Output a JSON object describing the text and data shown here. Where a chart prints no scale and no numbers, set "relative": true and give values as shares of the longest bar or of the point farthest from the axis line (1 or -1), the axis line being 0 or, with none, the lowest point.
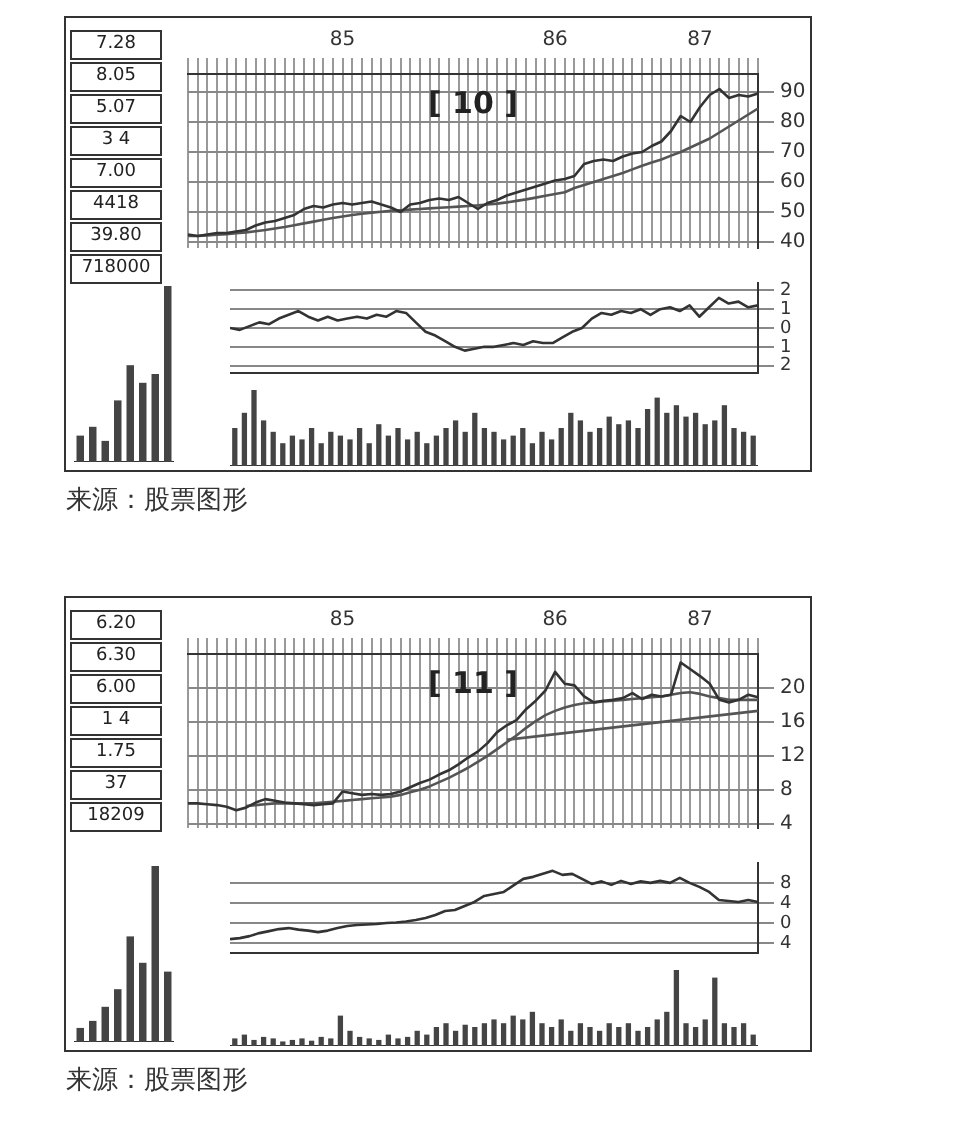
{
  "chart_data": [
    {
      "type": "line",
      "title": "[ 10 ]",
      "categories": [
        null,
        null,
        null,
        null,
        null,
        null,
        null,
        null,
        null,
        null,
        null,
        null,
        null,
        null,
        null,
        null,
        "85",
        null,
        null,
        null,
        null,
        null,
        null,
        null,
        null,
        null,
        null,
        null,
        null,
        null,
        null,
        null,
        null,
        null,
        null,
        null,
        null,
        null,
        "86",
        null,
        null,
        null,
        null,
        null,
        null,
        null,
        null,
        null,
        null,
        null,
        null,
        null,
        null,
        "87",
        null,
        null,
        null,
        null,
        null,
        null
      ],
      "series": [
        {
          "color": "#333333",
          "values": [
            42.5,
            42,
            42.5,
            43,
            43,
            43.5,
            44,
            45.5,
            46.5,
            47,
            48,
            49,
            51,
            52,
            51.5,
            52.5,
            53,
            52.5,
            53,
            53.5,
            52.5,
            51.5,
            50,
            52.5,
            53,
            54,
            54.5,
            54,
            55,
            53,
            51,
            53,
            54,
            55.5,
            56.5,
            57.5,
            58.5,
            59.5,
            60.5,
            61,
            62,
            66,
            67,
            67.5,
            67,
            68.5,
            69.5,
            70,
            72,
            73.5,
            77,
            82,
            80,
            85,
            89,
            91,
            88,
            89,
            88.5,
            89.5
          ]
        },
        {
          "color": "#555555",
          "values": [
            42,
            42,
            42.2,
            42.4,
            42.6,
            42.9,
            43.2,
            43.6,
            44,
            44.5,
            45,
            45.6,
            46.2,
            46.8,
            47.4,
            48,
            48.5,
            49,
            49.4,
            49.8,
            50.1,
            50.4,
            50.6,
            50.8,
            51,
            51.2,
            51.4,
            51.6,
            51.8,
            52,
            52.2,
            52.5,
            52.8,
            53.2,
            53.7,
            54.2,
            54.8,
            55.4,
            56,
            56.6,
            58,
            59,
            60,
            61,
            62,
            63,
            64.2,
            65.4,
            66.5,
            67.5,
            68.8,
            70,
            71.5,
            73,
            74.5,
            76.5,
            78.5,
            80.5,
            82.5,
            84.5
          ]
        }
      ],
      "ylim": [
        38,
        96
      ],
      "yticks": [
        40,
        50,
        60,
        70,
        80,
        90
      ],
      "grid": true,
      "marker": "none",
      "annotations": [
        "7.28",
        "8.05",
        "5.07",
        "3 4",
        "7.00",
        "4418",
        "39.80",
        "718000"
      ]
    },
    {
      "type": "line",
      "categories": [
        null,
        null,
        null,
        null,
        null,
        null,
        null,
        null,
        null,
        null,
        null,
        null,
        null,
        null,
        null,
        null,
        null,
        null,
        null,
        null,
        null,
        null,
        null,
        null,
        null,
        null,
        null,
        null,
        null,
        null,
        null,
        null,
        null,
        null,
        null,
        null,
        null,
        null,
        null,
        null,
        null,
        null,
        null,
        null,
        null,
        null,
        null,
        null,
        null,
        null,
        null,
        null,
        null,
        null,
        null
      ],
      "series": [
        {
          "color": "#333333",
          "values": [
            0,
            -0.1,
            0.1,
            0.3,
            0.2,
            0.5,
            0.7,
            0.9,
            0.6,
            0.4,
            0.6,
            0.4,
            0.5,
            0.6,
            0.5,
            0.7,
            0.6,
            0.9,
            0.8,
            0.3,
            -0.2,
            -0.4,
            -0.7,
            -1,
            -1.2,
            -1.1,
            -1,
            -1,
            -0.9,
            -0.8,
            -0.9,
            -0.7,
            -0.8,
            -0.8,
            -0.5,
            -0.2,
            0,
            0.5,
            0.8,
            0.7,
            0.9,
            0.8,
            1,
            0.7,
            1,
            1.1,
            0.9,
            1.2,
            0.6,
            1.1,
            1.6,
            1.3,
            1.4,
            1.1,
            1.2
          ]
        }
      ],
      "ylim": [
        -2.4,
        2.4
      ],
      "yticks": [
        2,
        1,
        0,
        {
          "value": -1,
          "label": "1"
        },
        {
          "value": -2,
          "label": "2"
        }
      ],
      "grid": "y",
      "marker": "none",
      "tick_labels": "y"
    },
    {
      "type": "bar",
      "relative": true,
      "categories": [
        null,
        null,
        null,
        null,
        null,
        null,
        null,
        null,
        null,
        null,
        null,
        null,
        null,
        null,
        null,
        null,
        null,
        null,
        null,
        null,
        null,
        null,
        null,
        null,
        null,
        null,
        null,
        null,
        null,
        null,
        null,
        null,
        null,
        null,
        null,
        null,
        null,
        null,
        null,
        null,
        null,
        null,
        null,
        null,
        null,
        null,
        null,
        null,
        null,
        null,
        null,
        null,
        null,
        null,
        null
      ],
      "values": [
        0.5,
        0.7,
        1,
        0.6,
        0.45,
        0.3,
        0.4,
        0.35,
        0.5,
        0.3,
        0.45,
        0.4,
        0.35,
        0.5,
        0.3,
        0.55,
        0.4,
        0.5,
        0.35,
        0.45,
        0.3,
        0.4,
        0.5,
        0.6,
        0.45,
        0.7,
        0.5,
        0.45,
        0.35,
        0.4,
        0.5,
        0.3,
        0.45,
        0.35,
        0.5,
        0.7,
        0.6,
        0.45,
        0.5,
        0.65,
        0.55,
        0.6,
        0.5,
        0.75,
        0.9,
        0.7,
        0.8,
        0.65,
        0.7,
        0.55,
        0.6,
        0.8,
        0.5,
        0.45,
        0.4
      ],
      "color": "#444444",
      "tick_labels": false,
      "annotations": [
        "来源：股票图形"
      ]
    },
    {
      "type": "bar",
      "relative": true,
      "categories": [
        null,
        null,
        null,
        null,
        null,
        null,
        null,
        null
      ],
      "values": [
        0.15,
        0.2,
        0.12,
        0.35,
        0.55,
        0.45,
        0.5,
        1
      ],
      "color": "#444444",
      "tick_labels": false
    },
    {
      "type": "line",
      "title": "[ 11 ]",
      "categories": [
        null,
        null,
        null,
        null,
        null,
        null,
        null,
        null,
        null,
        null,
        null,
        null,
        null,
        null,
        null,
        null,
        "85",
        null,
        null,
        null,
        null,
        null,
        null,
        null,
        null,
        null,
        null,
        null,
        null,
        null,
        null,
        null,
        null,
        null,
        null,
        null,
        null,
        null,
        "86",
        null,
        null,
        null,
        null,
        null,
        null,
        null,
        null,
        null,
        null,
        null,
        null,
        null,
        null,
        "87",
        null,
        null,
        null,
        null,
        null,
        null
      ],
      "series": [
        {
          "color": "#333333",
          "values": [
            6.4,
            6.4,
            6.3,
            6.2,
            6,
            5.6,
            5.9,
            6.5,
            6.9,
            6.7,
            6.5,
            6.4,
            6.3,
            6.2,
            6.3,
            6.4,
            7.8,
            7.6,
            7.4,
            7.5,
            7.4,
            7.5,
            7.8,
            8.3,
            8.8,
            9.2,
            9.8,
            10.3,
            11,
            11.8,
            12.5,
            13.5,
            14.8,
            15.6,
            16.2,
            17.5,
            18.5,
            19.7,
            21.9,
            20.5,
            20.3,
            19,
            18.3,
            18.5,
            18.6,
            18.8,
            19.4,
            18.7,
            19.2,
            19,
            19.2,
            23,
            22.2,
            21.4,
            20.5,
            18.6,
            18.3,
            18.6,
            19.2,
            18.9
          ]
        },
        {
          "color": "#555555",
          "values": [
            null,
            null,
            null,
            null,
            null,
            null,
            6.1,
            6.2,
            6.3,
            6.4,
            6.4,
            6.4,
            6.4,
            6.4,
            6.5,
            6.6,
            6.7,
            6.8,
            6.9,
            7,
            7.1,
            7.2,
            7.4,
            7.7,
            8,
            8.4,
            8.9,
            9.4,
            10,
            10.6,
            11.3,
            12,
            12.8,
            13.6,
            14.4,
            15.3,
            16.1,
            16.8,
            17.3,
            17.7,
            18,
            18.2,
            18.3,
            18.4,
            18.5,
            18.6,
            18.7,
            18.8,
            18.9,
            19,
            19.2,
            19.4,
            19.5,
            19.3,
            19,
            18.8,
            18.6,
            18.6,
            18.6,
            18.6
          ]
        },
        {
          "color": "#555555",
          "values": [
            null,
            null,
            null,
            null,
            null,
            null,
            null,
            null,
            null,
            null,
            null,
            null,
            null,
            null,
            null,
            null,
            null,
            null,
            null,
            null,
            null,
            null,
            null,
            null,
            null,
            null,
            null,
            null,
            null,
            null,
            null,
            null,
            null,
            13.9,
            null,
            null,
            null,
            null,
            null,
            null,
            null,
            null,
            null,
            null,
            null,
            null,
            null,
            null,
            null,
            null,
            null,
            null,
            null,
            null,
            null,
            null,
            null,
            null,
            null,
            17.3
          ]
        }
      ],
      "ylim": [
        3.5,
        24
      ],
      "yticks": [
        4,
        8,
        12,
        16,
        20
      ],
      "grid": true,
      "marker": "none",
      "annotations": [
        "6.20",
        "6.30",
        "6.00",
        "1 4",
        "1.75",
        "37",
        "18209"
      ]
    },
    {
      "type": "line",
      "categories": [
        null,
        null,
        null,
        null,
        null,
        null,
        null,
        null,
        null,
        null,
        null,
        null,
        null,
        null,
        null,
        null,
        null,
        null,
        null,
        null,
        null,
        null,
        null,
        null,
        null,
        null,
        null,
        null,
        null,
        null,
        null,
        null,
        null,
        null,
        null,
        null,
        null,
        null,
        null,
        null,
        null,
        null,
        null,
        null,
        null,
        null,
        null,
        null,
        null,
        null,
        null,
        null,
        null,
        null,
        null
      ],
      "series": [
        {
          "color": "#333333",
          "values": [
            -3.2,
            -3,
            -2.6,
            -2,
            -1.6,
            -1.2,
            -1,
            -1.3,
            -1.5,
            -1.8,
            -1.5,
            -1,
            -0.6,
            -0.4,
            -0.3,
            -0.2,
            0,
            0.1,
            0.3,
            0.6,
            1,
            1.6,
            2.4,
            2.6,
            3.4,
            4.2,
            5.4,
            5.8,
            6.2,
            7.5,
            8.8,
            9.2,
            9.8,
            10.4,
            9.6,
            9.8,
            8.8,
            7.8,
            8.3,
            7.6,
            8.4,
            7.8,
            8.3,
            8,
            8.4,
            8,
            9,
            8,
            7.2,
            6.2,
            4.6,
            4.4,
            4.2,
            4.6,
            4.2
          ]
        }
      ],
      "ylim": [
        -6,
        12
      ],
      "yticks": [
        8,
        4,
        0,
        {
          "value": -4,
          "label": "4"
        }
      ],
      "grid": "y",
      "marker": "none",
      "tick_labels": "y"
    },
    {
      "type": "bar",
      "relative": true,
      "categories": [
        null,
        null,
        null,
        null,
        null,
        null,
        null,
        null,
        null,
        null,
        null,
        null,
        null,
        null,
        null,
        null,
        null,
        null,
        null,
        null,
        null,
        null,
        null,
        null,
        null,
        null,
        null,
        null,
        null,
        null,
        null,
        null,
        null,
        null,
        null,
        null,
        null,
        null,
        null,
        null,
        null,
        null,
        null,
        null,
        null,
        null,
        null,
        null,
        null,
        null,
        null,
        null,
        null,
        null,
        null
      ],
      "values": [
        0.1,
        0.15,
        0.08,
        0.12,
        0.1,
        0.06,
        0.08,
        0.1,
        0.07,
        0.12,
        0.1,
        0.4,
        0.2,
        0.12,
        0.1,
        0.08,
        0.15,
        0.1,
        0.12,
        0.2,
        0.15,
        0.25,
        0.3,
        0.2,
        0.28,
        0.25,
        0.3,
        0.35,
        0.3,
        0.4,
        0.35,
        0.45,
        0.3,
        0.25,
        0.35,
        0.2,
        0.3,
        0.25,
        0.2,
        0.3,
        0.25,
        0.3,
        0.2,
        0.25,
        0.35,
        0.45,
        1,
        0.3,
        0.25,
        0.35,
        0.9,
        0.3,
        0.25,
        0.3,
        0.15
      ],
      "color": "#444444",
      "tick_labels": false,
      "annotations": [
        "来源：股票图形"
      ]
    },
    {
      "type": "bar",
      "relative": true,
      "categories": [
        null,
        null,
        null,
        null,
        null,
        null,
        null,
        null
      ],
      "values": [
        0.08,
        0.12,
        0.2,
        0.3,
        0.6,
        0.45,
        1,
        0.4
      ],
      "color": "#444444",
      "tick_labels": false
    }
  ]
}
